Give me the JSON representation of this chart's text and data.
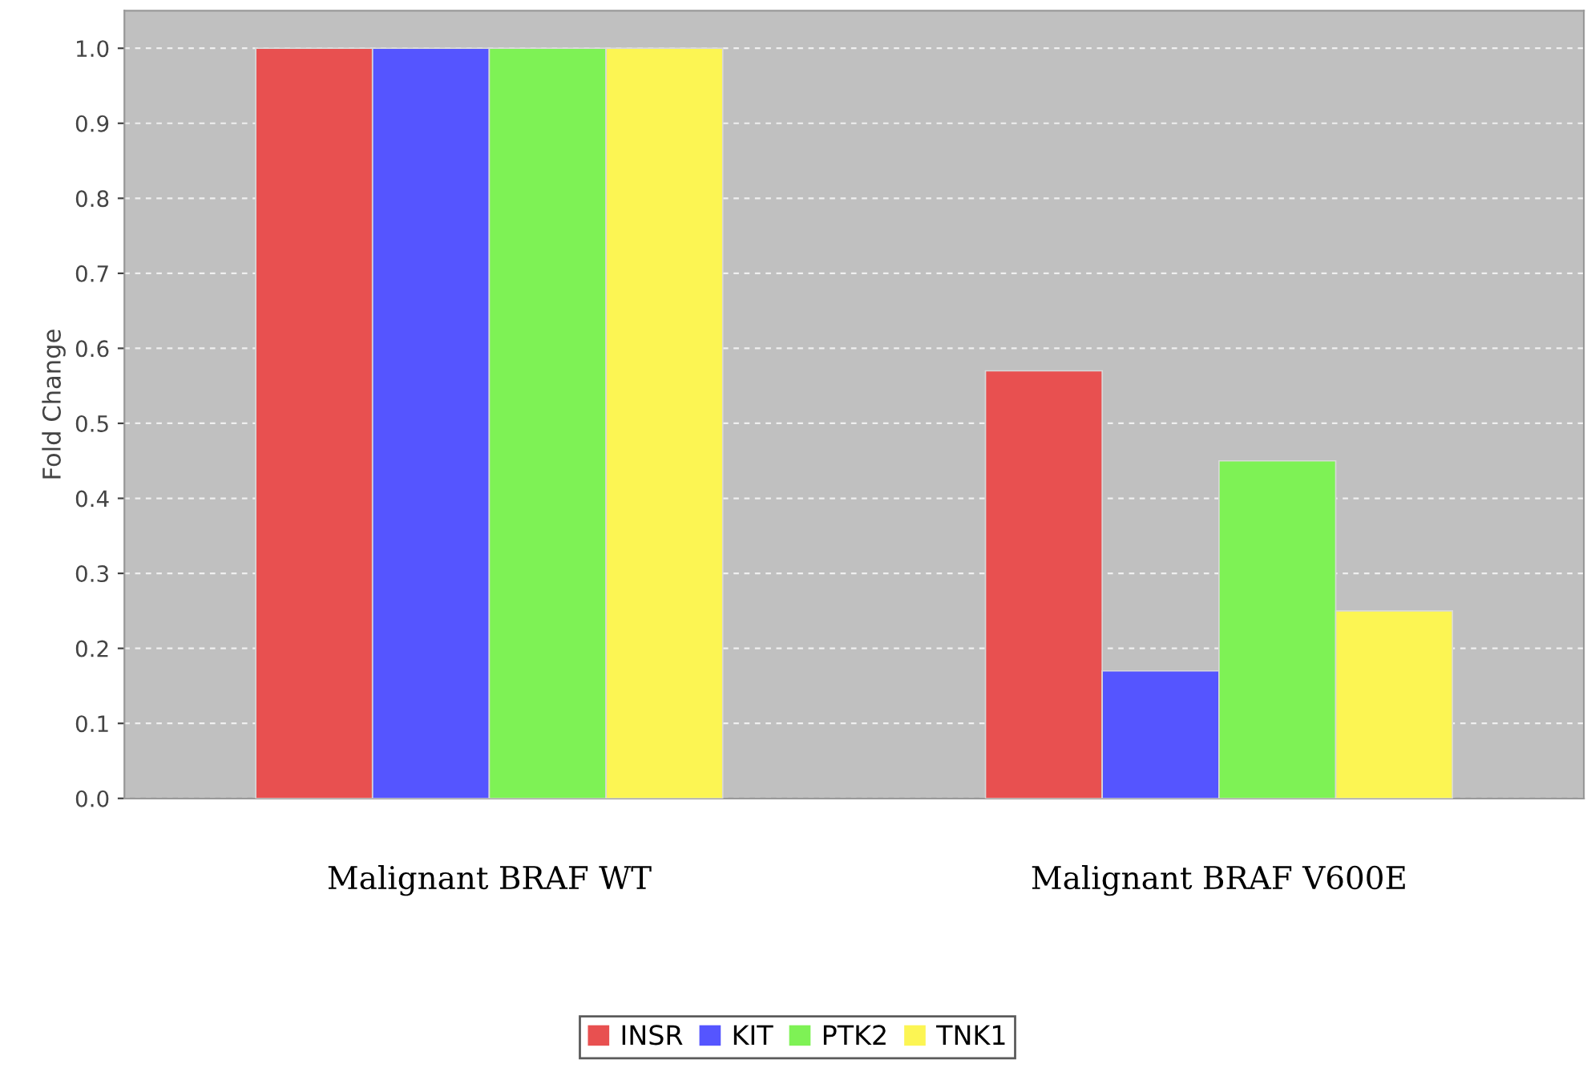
{
  "chart_data": {
    "type": "bar",
    "ylabel": "Fold Change",
    "categories": [
      "Malignant BRAF WT",
      "Malignant BRAF V600E"
    ],
    "series": [
      {
        "name": "INSR",
        "color": "#e85050",
        "values": [
          1.0,
          0.57
        ]
      },
      {
        "name": "KIT",
        "color": "#5555ff",
        "values": [
          1.0,
          0.17
        ]
      },
      {
        "name": "PTK2",
        "color": "#7ef255",
        "values": [
          1.0,
          0.45
        ]
      },
      {
        "name": "TNK1",
        "color": "#fcf553",
        "values": [
          1.0,
          0.25
        ]
      }
    ],
    "ylim": [
      0,
      1.05
    ],
    "yticks": [
      {
        "value": 0,
        "label": "0.0"
      },
      0.1,
      0.2,
      0.3,
      0.4,
      0.5,
      0.6,
      0.7,
      0.8,
      0.9,
      {
        "value": 1,
        "label": "1.0"
      }
    ],
    "grid": "y",
    "legend": "bottom"
  }
}
